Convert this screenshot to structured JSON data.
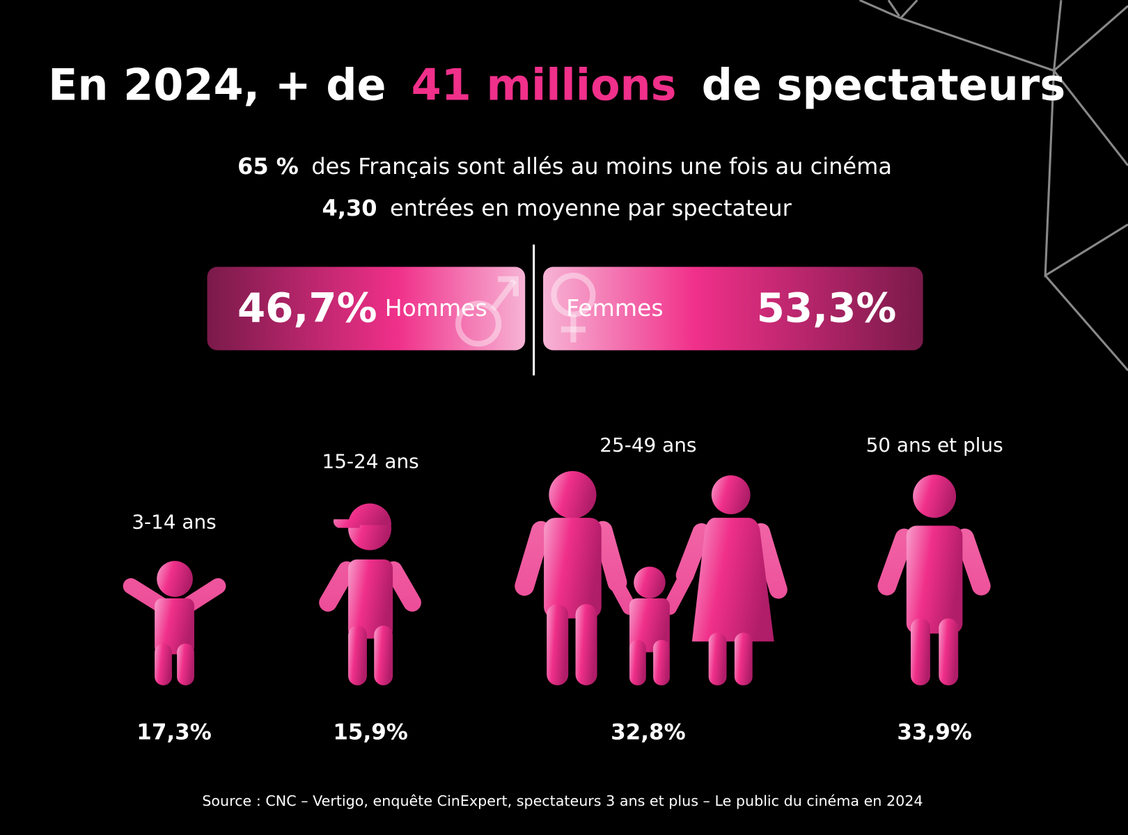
{
  "title": {
    "before": "En 2024, + de",
    "highlight": "41 millions",
    "after": "de spectateurs"
  },
  "stats": [
    {
      "value": "65 %",
      "text": "des Français sont allés au moins une fois au cinéma"
    },
    {
      "value": "4,30",
      "text": "entrées en moyenne par spectateur"
    }
  ],
  "gender": [
    {
      "value": "46,7%",
      "label": "Hommes"
    },
    {
      "value": "53,3%",
      "label": "Femmes"
    }
  ],
  "ages": [
    {
      "label": "3-14 ans",
      "value": "17,3%"
    },
    {
      "label": "15-24 ans",
      "value": "15,9%"
    },
    {
      "label": "25-49 ans",
      "value": "32,8%"
    },
    {
      "label": "50 ans et plus",
      "value": "33,9%"
    }
  ],
  "source": "Source : CNC – Vertigo, enquête CinExpert, spectateurs 3 ans et plus – Le public du cinéma en 2024"
}
